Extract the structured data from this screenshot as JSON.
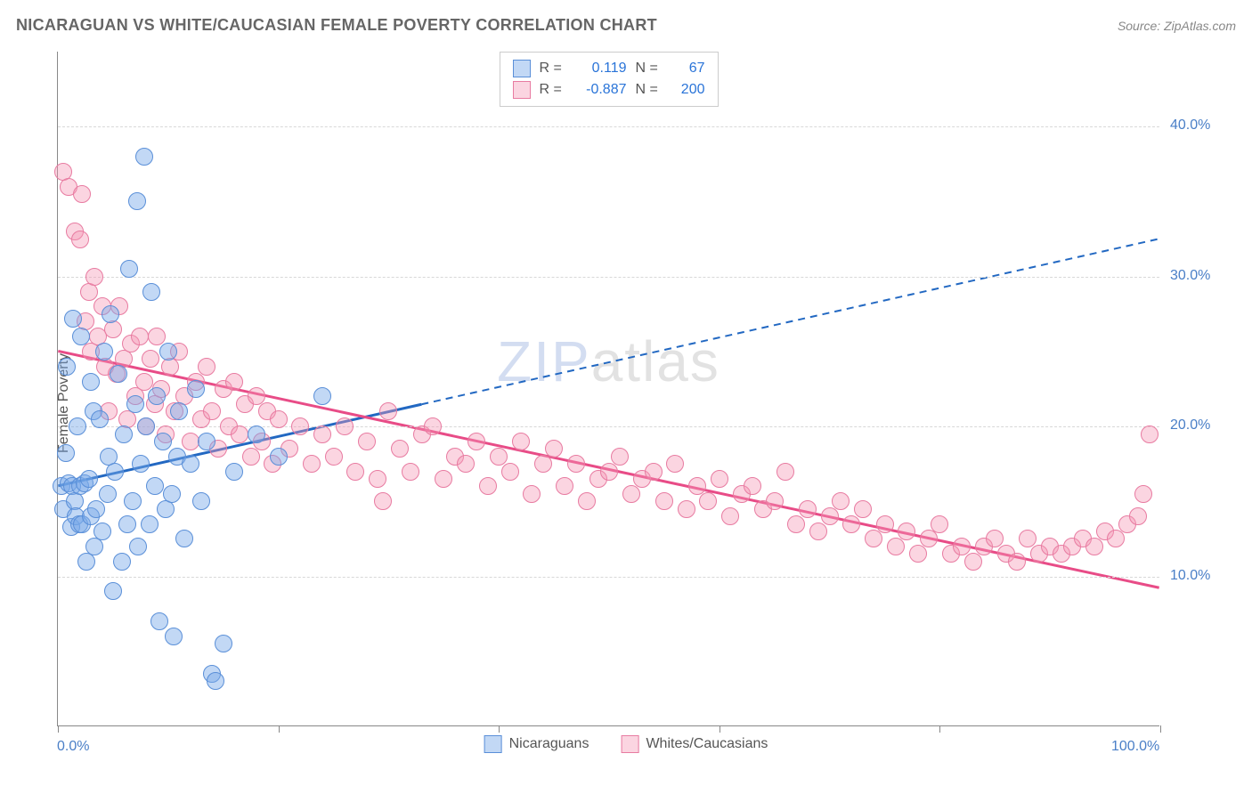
{
  "header": {
    "title": "NICARAGUAN VS WHITE/CAUCASIAN FEMALE POVERTY CORRELATION CHART",
    "source": "Source: ZipAtlas.com"
  },
  "chart": {
    "ylabel": "Female Poverty",
    "watermark_a": "ZIP",
    "watermark_b": "atlas",
    "xlim": [
      0,
      100
    ],
    "ylim": [
      0,
      45
    ],
    "yticks": [
      {
        "value": 10,
        "label": "10.0%"
      },
      {
        "value": 20,
        "label": "20.0%"
      },
      {
        "value": 30,
        "label": "30.0%"
      },
      {
        "value": 40,
        "label": "40.0%"
      }
    ],
    "xticks": [
      0,
      20,
      40,
      60,
      80,
      100
    ],
    "xtick_labels": {
      "left": "0.0%",
      "right": "100.0%"
    },
    "colors": {
      "blue_fill": "rgba(120,168,232,0.45)",
      "blue_stroke": "#5a8fd8",
      "pink_fill": "rgba(245,150,180,0.40)",
      "pink_stroke": "#e87ba1",
      "trend_blue": "#2268c2",
      "trend_pink": "#e84c87",
      "ytick_color": "#4a7fc7",
      "xtick_color": "#4a7fc7",
      "grid_color": "#d8d8d8"
    },
    "marker_radius": 10,
    "r_legend": [
      {
        "swatch_fill": "rgba(120,168,232,0.45)",
        "swatch_stroke": "#5a8fd8",
        "r": "0.119",
        "n": "67",
        "value_color": "#2a74d8"
      },
      {
        "swatch_fill": "rgba(245,150,180,0.40)",
        "swatch_stroke": "#e87ba1",
        "r": "-0.887",
        "n": "200",
        "value_color": "#2a74d8"
      }
    ],
    "bottom_legend": [
      {
        "swatch_fill": "rgba(120,168,232,0.45)",
        "swatch_stroke": "#5a8fd8",
        "label": "Nicaraguans"
      },
      {
        "swatch_fill": "rgba(245,150,180,0.40)",
        "swatch_stroke": "#e87ba1",
        "label": "Whites/Caucasians"
      }
    ],
    "trend_lines": {
      "blue": {
        "x1": 0,
        "y1": 16,
        "x2": 100,
        "y2": 32.5,
        "solid_until_x": 33
      },
      "pink": {
        "x1": 0,
        "y1": 25,
        "x2": 100,
        "y2": 9.2
      }
    },
    "blue_points": [
      [
        0.3,
        16.0
      ],
      [
        0.5,
        14.5
      ],
      [
        0.7,
        18.2
      ],
      [
        0.8,
        24.0
      ],
      [
        1.0,
        16.2
      ],
      [
        1.2,
        13.3
      ],
      [
        1.3,
        16.0
      ],
      [
        1.4,
        27.2
      ],
      [
        1.5,
        15.0
      ],
      [
        1.6,
        14.0
      ],
      [
        1.8,
        20.0
      ],
      [
        1.9,
        13.5
      ],
      [
        2.0,
        16.0
      ],
      [
        2.1,
        26.0
      ],
      [
        2.2,
        13.5
      ],
      [
        2.4,
        16.2
      ],
      [
        2.6,
        11.0
      ],
      [
        2.8,
        16.5
      ],
      [
        3.0,
        23.0
      ],
      [
        3.0,
        14.0
      ],
      [
        3.2,
        21.0
      ],
      [
        3.3,
        12.0
      ],
      [
        3.5,
        14.5
      ],
      [
        3.8,
        20.5
      ],
      [
        4.0,
        13.0
      ],
      [
        4.2,
        25.0
      ],
      [
        4.5,
        15.5
      ],
      [
        4.6,
        18.0
      ],
      [
        4.8,
        27.5
      ],
      [
        5.0,
        9.0
      ],
      [
        5.2,
        17.0
      ],
      [
        5.5,
        23.5
      ],
      [
        5.8,
        11.0
      ],
      [
        6.0,
        19.5
      ],
      [
        6.3,
        13.5
      ],
      [
        6.5,
        30.5
      ],
      [
        6.8,
        15.0
      ],
      [
        7.0,
        21.5
      ],
      [
        7.2,
        35.0
      ],
      [
        7.3,
        12.0
      ],
      [
        7.5,
        17.5
      ],
      [
        7.8,
        38.0
      ],
      [
        8.0,
        20.0
      ],
      [
        8.3,
        13.5
      ],
      [
        8.5,
        29.0
      ],
      [
        8.8,
        16.0
      ],
      [
        9.0,
        22.0
      ],
      [
        9.2,
        7.0
      ],
      [
        9.5,
        19.0
      ],
      [
        9.8,
        14.5
      ],
      [
        10.0,
        25.0
      ],
      [
        10.3,
        15.5
      ],
      [
        10.5,
        6.0
      ],
      [
        10.8,
        18.0
      ],
      [
        11.0,
        21.0
      ],
      [
        11.5,
        12.5
      ],
      [
        12.0,
        17.5
      ],
      [
        12.5,
        22.5
      ],
      [
        13.0,
        15.0
      ],
      [
        13.5,
        19.0
      ],
      [
        14.0,
        3.5
      ],
      [
        14.3,
        3.0
      ],
      [
        15.0,
        5.5
      ],
      [
        16.0,
        17.0
      ],
      [
        18.0,
        19.5
      ],
      [
        20.0,
        18.0
      ],
      [
        24.0,
        22.0
      ]
    ],
    "pink_points": [
      [
        0.5,
        37.0
      ],
      [
        1.0,
        36.0
      ],
      [
        1.5,
        33.0
      ],
      [
        2.0,
        32.5
      ],
      [
        2.2,
        35.5
      ],
      [
        2.5,
        27.0
      ],
      [
        2.8,
        29.0
      ],
      [
        3.0,
        25.0
      ],
      [
        3.3,
        30.0
      ],
      [
        3.6,
        26.0
      ],
      [
        4.0,
        28.0
      ],
      [
        4.3,
        24.0
      ],
      [
        4.6,
        21.0
      ],
      [
        5.0,
        26.5
      ],
      [
        5.3,
        23.5
      ],
      [
        5.6,
        28.0
      ],
      [
        6.0,
        24.5
      ],
      [
        6.3,
        20.5
      ],
      [
        6.6,
        25.5
      ],
      [
        7.0,
        22.0
      ],
      [
        7.4,
        26.0
      ],
      [
        7.8,
        23.0
      ],
      [
        8.0,
        20.0
      ],
      [
        8.4,
        24.5
      ],
      [
        8.8,
        21.5
      ],
      [
        9.0,
        26.0
      ],
      [
        9.4,
        22.5
      ],
      [
        9.8,
        19.5
      ],
      [
        10.2,
        24.0
      ],
      [
        10.6,
        21.0
      ],
      [
        11.0,
        25.0
      ],
      [
        11.5,
        22.0
      ],
      [
        12.0,
        19.0
      ],
      [
        12.5,
        23.0
      ],
      [
        13.0,
        20.5
      ],
      [
        13.5,
        24.0
      ],
      [
        14.0,
        21.0
      ],
      [
        14.5,
        18.5
      ],
      [
        15.0,
        22.5
      ],
      [
        15.5,
        20.0
      ],
      [
        16.0,
        23.0
      ],
      [
        16.5,
        19.5
      ],
      [
        17.0,
        21.5
      ],
      [
        17.5,
        18.0
      ],
      [
        18.0,
        22.0
      ],
      [
        18.5,
        19.0
      ],
      [
        19.0,
        21.0
      ],
      [
        19.5,
        17.5
      ],
      [
        20.0,
        20.5
      ],
      [
        21.0,
        18.5
      ],
      [
        22.0,
        20.0
      ],
      [
        23.0,
        17.5
      ],
      [
        24.0,
        19.5
      ],
      [
        25.0,
        18.0
      ],
      [
        26.0,
        20.0
      ],
      [
        27.0,
        17.0
      ],
      [
        28.0,
        19.0
      ],
      [
        29.0,
        16.5
      ],
      [
        29.5,
        15.0
      ],
      [
        30.0,
        21.0
      ],
      [
        31.0,
        18.5
      ],
      [
        32.0,
        17.0
      ],
      [
        33.0,
        19.5
      ],
      [
        34.0,
        20.0
      ],
      [
        35.0,
        16.5
      ],
      [
        36.0,
        18.0
      ],
      [
        37.0,
        17.5
      ],
      [
        38.0,
        19.0
      ],
      [
        39.0,
        16.0
      ],
      [
        40.0,
        18.0
      ],
      [
        41.0,
        17.0
      ],
      [
        42.0,
        19.0
      ],
      [
        43.0,
        15.5
      ],
      [
        44.0,
        17.5
      ],
      [
        45.0,
        18.5
      ],
      [
        46.0,
        16.0
      ],
      [
        47.0,
        17.5
      ],
      [
        48.0,
        15.0
      ],
      [
        49.0,
        16.5
      ],
      [
        50.0,
        17.0
      ],
      [
        51.0,
        18.0
      ],
      [
        52.0,
        15.5
      ],
      [
        53.0,
        16.5
      ],
      [
        54.0,
        17.0
      ],
      [
        55.0,
        15.0
      ],
      [
        56.0,
        17.5
      ],
      [
        57.0,
        14.5
      ],
      [
        58.0,
        16.0
      ],
      [
        59.0,
        15.0
      ],
      [
        60.0,
        16.5
      ],
      [
        61.0,
        14.0
      ],
      [
        62.0,
        15.5
      ],
      [
        63.0,
        16.0
      ],
      [
        64.0,
        14.5
      ],
      [
        65.0,
        15.0
      ],
      [
        66.0,
        17.0
      ],
      [
        67.0,
        13.5
      ],
      [
        68.0,
        14.5
      ],
      [
        69.0,
        13.0
      ],
      [
        70.0,
        14.0
      ],
      [
        71.0,
        15.0
      ],
      [
        72.0,
        13.5
      ],
      [
        73.0,
        14.5
      ],
      [
        74.0,
        12.5
      ],
      [
        75.0,
        13.5
      ],
      [
        76.0,
        12.0
      ],
      [
        77.0,
        13.0
      ],
      [
        78.0,
        11.5
      ],
      [
        79.0,
        12.5
      ],
      [
        80.0,
        13.5
      ],
      [
        81.0,
        11.5
      ],
      [
        82.0,
        12.0
      ],
      [
        83.0,
        11.0
      ],
      [
        84.0,
        12.0
      ],
      [
        85.0,
        12.5
      ],
      [
        86.0,
        11.5
      ],
      [
        87.0,
        11.0
      ],
      [
        88.0,
        12.5
      ],
      [
        89.0,
        11.5
      ],
      [
        90.0,
        12.0
      ],
      [
        91.0,
        11.5
      ],
      [
        92.0,
        12.0
      ],
      [
        93.0,
        12.5
      ],
      [
        94.0,
        12.0
      ],
      [
        95.0,
        13.0
      ],
      [
        96.0,
        12.5
      ],
      [
        97.0,
        13.5
      ],
      [
        98.0,
        14.0
      ],
      [
        98.5,
        15.5
      ],
      [
        99.0,
        19.5
      ]
    ]
  }
}
